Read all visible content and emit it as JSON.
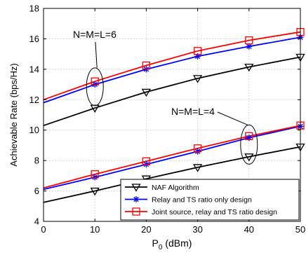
{
  "chart_data": {
    "type": "line",
    "xlabel_main": "P",
    "xlabel_sub": "0",
    "xlabel_unit": " (dBm)",
    "ylabel": "Achievable Rate (bps/Hz)",
    "xlim": [
      0,
      50
    ],
    "ylim": [
      4,
      18
    ],
    "xticks": [
      0,
      10,
      20,
      30,
      40,
      50
    ],
    "yticks": [
      4,
      6,
      8,
      10,
      12,
      14,
      16,
      18
    ],
    "x": [
      0,
      10,
      20,
      30,
      40,
      50
    ],
    "grid": true,
    "legend_position": "bottom-right",
    "series": [
      {
        "name": "NAF Algorithm",
        "color": "#000000",
        "marker": "triangle-down",
        "group": "N=M=L=6",
        "values": [
          10.3,
          11.45,
          12.5,
          13.4,
          14.15,
          14.8
        ]
      },
      {
        "name": "Relay and TS ratio only design",
        "color": "#0000ff",
        "marker": "star",
        "group": "N=M=L=6",
        "values": [
          11.8,
          13.0,
          14.0,
          14.85,
          15.5,
          16.1
        ]
      },
      {
        "name": "Joint source, relay and TS ratio design",
        "color": "#ff0000",
        "marker": "square",
        "group": "N=M=L=6",
        "values": [
          12.0,
          13.2,
          14.25,
          15.2,
          15.9,
          16.45
        ]
      },
      {
        "name": "NAF Algorithm",
        "color": "#000000",
        "marker": "triangle-down",
        "group": "N=M=L=4",
        "values": [
          5.25,
          6.0,
          6.8,
          7.55,
          8.25,
          8.9
        ]
      },
      {
        "name": "Relay and TS ratio only design",
        "color": "#0000ff",
        "marker": "star",
        "group": "N=M=L=4",
        "values": [
          6.1,
          6.9,
          7.75,
          8.6,
          9.5,
          10.25
        ]
      },
      {
        "name": "Joint source, relay and TS ratio design",
        "color": "#ff0000",
        "marker": "square",
        "group": "N=M=L=4",
        "values": [
          6.2,
          7.1,
          7.95,
          8.8,
          9.6,
          10.3
        ]
      }
    ],
    "legend": [
      {
        "label": "NAF Algorithm",
        "color": "#000000",
        "marker": "triangle-down"
      },
      {
        "label": "Relay and TS ratio only design",
        "color": "#0000ff",
        "marker": "star"
      },
      {
        "label": "Joint source, relay and TS ratio design",
        "color": "#ff0000",
        "marker": "square"
      }
    ],
    "annotations": [
      {
        "text": "N=M=L=6",
        "ellipse_center": [
          10,
          12.85
        ],
        "ellipse_radius_data": [
          1.6,
          1.35
        ]
      },
      {
        "text": "N=M=L=4",
        "ellipse_center": [
          40,
          9.05
        ],
        "ellipse_radius_data": [
          1.6,
          1.45
        ]
      }
    ]
  }
}
